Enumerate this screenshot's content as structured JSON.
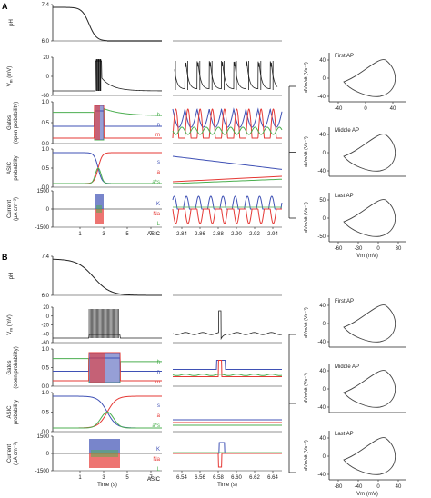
{
  "panels": [
    {
      "letter": "A",
      "rows": [
        {
          "ylabel": [
            "pH"
          ],
          "ticks": [
            "7.4",
            "6.0"
          ]
        },
        {
          "ylabel": [
            "V",
            "m",
            " (mV)"
          ],
          "ticks": [
            "20",
            "0",
            "-60"
          ]
        },
        {
          "ylabel": [
            "Gates",
            "(open probability)"
          ],
          "ticks": [
            "1.0",
            "0.5",
            "0.0"
          ],
          "legend": [
            "h",
            "n",
            "m"
          ]
        },
        {
          "ylabel": [
            "ASIC",
            "probability"
          ],
          "ticks": [
            "1.0",
            "0.5",
            "0.0"
          ],
          "legend": [
            "s",
            "a",
            "a*s"
          ]
        },
        {
          "ylabel": [
            "Current",
            "(µA cm⁻²)"
          ],
          "ticks": [
            "1500",
            "0",
            "-1500"
          ],
          "legend": [
            "K",
            "Na",
            "L",
            "ASIC"
          ]
        }
      ],
      "left_xticks": [
        "1",
        "3",
        "5",
        "7"
      ],
      "mid_xticks": [
        "2.84",
        "2.86",
        "2.88",
        "2.90",
        "2.92",
        "2.94"
      ],
      "mid_xlabel": "",
      "loops": [
        {
          "title": "First AP",
          "yticks": [
            "40",
            "0",
            "-40"
          ],
          "xticks": [
            "-40",
            "0",
            "40"
          ],
          "show_xticks": true
        },
        {
          "title": "Middle AP",
          "yticks": [
            "40",
            "0",
            "-40"
          ],
          "xticks": [],
          "show_xticks": false
        },
        {
          "title": "Last AP",
          "yticks": [
            "50",
            "0",
            "-50"
          ],
          "xticks": [
            "-60",
            "-30",
            "0",
            "30"
          ],
          "show_xticks": true
        }
      ],
      "loop_ylabel": "dVm/dt (Vs⁻¹)",
      "loop_xlabel": "Vm (mV)"
    },
    {
      "letter": "B",
      "rows": [
        {
          "ylabel": [
            "pH"
          ],
          "ticks": [
            "7.4",
            "6.0"
          ]
        },
        {
          "ylabel": [
            "V",
            "m",
            " (mV)"
          ],
          "ticks": [
            "20",
            "0",
            "-20",
            "-40",
            "-60"
          ]
        },
        {
          "ylabel": [
            "Gates",
            "(open probability)"
          ],
          "ticks": [
            "1.0",
            "0.5",
            "0.0"
          ],
          "legend": [
            "h",
            "n",
            "m"
          ]
        },
        {
          "ylabel": [
            "ASIC",
            "probability"
          ],
          "ticks": [
            "1.0",
            "0.5",
            "0.0"
          ],
          "legend": [
            "s",
            "a",
            "a*s"
          ]
        },
        {
          "ylabel": [
            "Current",
            "(µA cm⁻²)"
          ],
          "ticks": [
            "1500",
            "0",
            "-1500"
          ],
          "legend": [
            "K",
            "Na",
            "L",
            "ASIC"
          ]
        }
      ],
      "left_xticks": [
        "1",
        "3",
        "5",
        "7"
      ],
      "left_xlabel": "Time (s)",
      "mid_xticks": [
        "6.54",
        "6.56",
        "6.58",
        "6.60",
        "6.62",
        "6.64"
      ],
      "mid_xlabel": "Time (s)",
      "loops": [
        {
          "title": "First AP",
          "yticks": [
            "40",
            "0",
            "-40"
          ],
          "xticks": [],
          "show_xticks": false
        },
        {
          "title": "Middle AP",
          "yticks": [
            "40",
            "0",
            "-40"
          ],
          "xticks": [],
          "show_xticks": false
        },
        {
          "title": "Last AP",
          "yticks": [
            "40",
            "0",
            "-40"
          ],
          "xticks": [
            "-80",
            "-40",
            "0",
            "40"
          ],
          "show_xticks": true
        }
      ],
      "loop_ylabel": "dVm/dt (Vs⁻¹)",
      "loop_xlabel": "Vm (mV)"
    }
  ],
  "colors": {
    "h": "#4caf50",
    "n": "#3f51b5",
    "m": "#e53935",
    "s": "#3f51b5",
    "a": "#e53935",
    "as": "#4caf50",
    "K": "#3f51b5",
    "Na": "#e53935",
    "L": "#4caf50",
    "ASIC": "#000000"
  }
}
